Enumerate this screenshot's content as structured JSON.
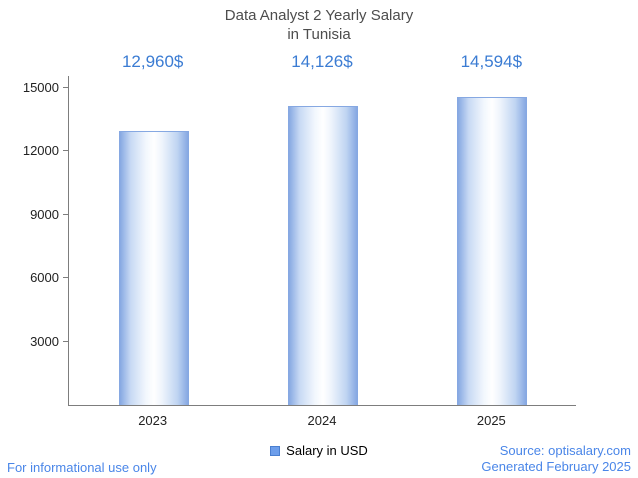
{
  "title": {
    "line1": "Data Analyst 2 Yearly Salary",
    "line2": "in Tunisia"
  },
  "legend": {
    "label": "Salary in USD",
    "marker_color": "#6d9eeb"
  },
  "footer": {
    "left": "For informational use only",
    "source": "Source: optisalary.com",
    "generated": "Generated February 2025"
  },
  "colors": {
    "accent_blue": "#3b7cd3",
    "footer_blue": "#4a86e8",
    "bar_edge": "#86a8e2",
    "axis_gray": "#7d7d7d",
    "title_gray": "#4d4d4d"
  },
  "chart_data": {
    "type": "bar",
    "title": "Data Analyst 2 Yearly Salary in Tunisia",
    "categories": [
      "2023",
      "2024",
      "2025"
    ],
    "values": [
      12960,
      14126,
      14594
    ],
    "value_labels": [
      "12,960$",
      "14,126$",
      "14,594$"
    ],
    "series_name": "Salary in USD",
    "xlabel": "",
    "ylabel": "",
    "ylim": [
      0,
      15000
    ],
    "yticks": [
      3000,
      6000,
      9000,
      12000,
      15000
    ],
    "grid": false,
    "legend_position": "bottom"
  }
}
